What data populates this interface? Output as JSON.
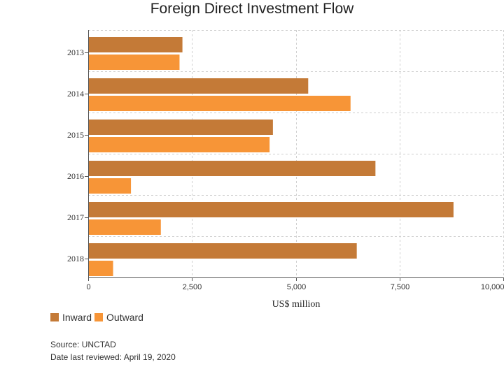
{
  "chart_data": {
    "type": "bar",
    "orientation": "horizontal",
    "title": "Foreign Direct Investment Flow",
    "xlabel": "US$ million",
    "ylabel": "",
    "categories": [
      "2013",
      "2014",
      "2015",
      "2016",
      "2017",
      "2018"
    ],
    "series": [
      {
        "name": "Inward",
        "color": "#c47a37",
        "values": [
          2270,
          5300,
          4450,
          6920,
          8800,
          6470
        ]
      },
      {
        "name": "Outward",
        "color": "#f79537",
        "values": [
          2200,
          6320,
          4370,
          1030,
          1750,
          600
        ]
      }
    ],
    "xlim": [
      0,
      10000
    ],
    "xticks": [
      "0",
      "2,500",
      "5,000",
      "7,500",
      "10,000"
    ],
    "xtick_values": [
      0,
      2500,
      5000,
      7500,
      10000
    ],
    "grid": true,
    "legend_position": "bottom-left"
  },
  "footer": {
    "source": "Source: UNCTAD",
    "reviewed": "Date last reviewed: April 19, 2020"
  }
}
